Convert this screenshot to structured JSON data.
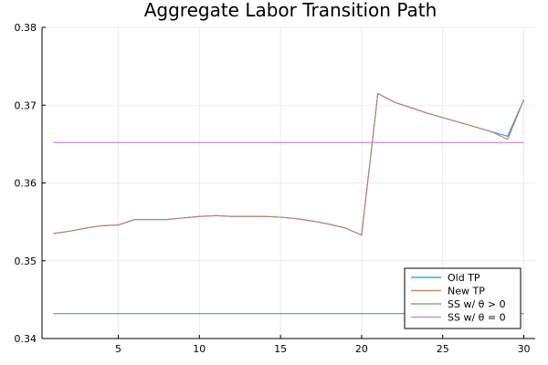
{
  "chart_data": {
    "type": "line",
    "title": "Aggregate Labor Transition Path",
    "xlabel": "",
    "ylabel": "",
    "xlim": [
      0.3,
      30.7
    ],
    "ylim": [
      0.34,
      0.38
    ],
    "x_ticks": [
      5,
      10,
      15,
      20,
      25,
      30
    ],
    "x_tick_labels": [
      "5",
      "10",
      "15",
      "20",
      "25",
      "30"
    ],
    "y_ticks": [
      0.34,
      0.35,
      0.36,
      0.37,
      0.38
    ],
    "y_tick_labels": [
      "0.34",
      "0.35",
      "0.36",
      "0.37",
      "0.38"
    ],
    "grid": true,
    "legend_position": "bottom-right",
    "series": [
      {
        "name": "Old TP",
        "color": "#009AFA",
        "x": [
          1,
          2,
          3,
          4,
          5,
          6,
          7,
          8,
          9,
          10,
          11,
          12,
          13,
          14,
          15,
          16,
          17,
          18,
          19,
          20,
          21,
          22,
          23,
          24,
          25,
          26,
          27,
          28,
          29,
          30
        ],
        "values": [
          0.3535,
          0.3538,
          0.3542,
          0.3545,
          0.3546,
          0.3553,
          0.3553,
          0.3553,
          0.3555,
          0.3557,
          0.3558,
          0.3557,
          0.3557,
          0.3557,
          0.3556,
          0.3554,
          0.3551,
          0.3547,
          0.3542,
          0.3533,
          0.3715,
          0.3704,
          0.3697,
          0.369,
          0.3684,
          0.3678,
          0.3672,
          0.3666,
          0.366,
          0.3707
        ]
      },
      {
        "name": "New TP",
        "color": "#C77B5A",
        "x": [
          1,
          2,
          3,
          4,
          5,
          6,
          7,
          8,
          9,
          10,
          11,
          12,
          13,
          14,
          15,
          16,
          17,
          18,
          19,
          20,
          21,
          22,
          23,
          24,
          25,
          26,
          27,
          28,
          29,
          30
        ],
        "values": [
          0.3535,
          0.3538,
          0.3542,
          0.3545,
          0.3546,
          0.3553,
          0.3553,
          0.3553,
          0.3555,
          0.3557,
          0.3558,
          0.3557,
          0.3557,
          0.3557,
          0.3556,
          0.3554,
          0.3551,
          0.3547,
          0.3542,
          0.3533,
          0.3715,
          0.3704,
          0.3697,
          0.369,
          0.3684,
          0.3678,
          0.3672,
          0.3666,
          0.3656,
          0.3707
        ]
      },
      {
        "name": "SS w/ θ > 0",
        "color": "#5FA05F",
        "x": [
          1,
          30
        ],
        "values": [
          0.3432,
          0.3432
        ]
      },
      {
        "name": "SS w/ θ = 0",
        "color": "#C77BDA",
        "x": [
          1,
          30
        ],
        "values": [
          0.3652,
          0.3652
        ]
      }
    ]
  }
}
